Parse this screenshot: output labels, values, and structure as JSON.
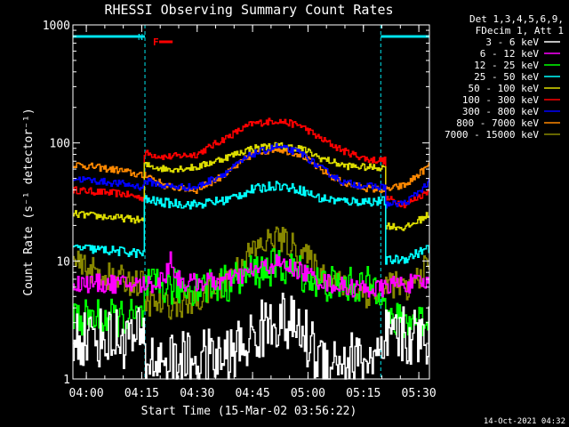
{
  "colors": {
    "background": "#000000",
    "axis": "#ffffff",
    "night": "#00e5ee",
    "flare": "#ff0000"
  },
  "chart_data": {
    "type": "line",
    "title": "RHESSI Observing Summary Count Rates",
    "xlabel": "Start Time (15-Mar-02 03:56:22)",
    "ylabel": "Count Rate (s⁻¹ detector⁻¹)",
    "yscale": "log",
    "ylim": [
      1,
      1000
    ],
    "xlim": [
      0,
      5790
    ],
    "x_unit": "seconds from 03:56:22",
    "yticks": [
      {
        "value": 1,
        "label": "1"
      },
      {
        "value": 10,
        "label": "10"
      },
      {
        "value": 100,
        "label": "100"
      },
      {
        "value": 1000,
        "label": "1000"
      }
    ],
    "xticks": [
      {
        "t": 218,
        "label": "04:00"
      },
      {
        "t": 1118,
        "label": "04:15"
      },
      {
        "t": 2018,
        "label": "04:30"
      },
      {
        "t": 2918,
        "label": "04:45"
      },
      {
        "t": 3818,
        "label": "05:00"
      },
      {
        "t": 4718,
        "label": "05:15"
      },
      {
        "t": 5618,
        "label": "05:30"
      }
    ],
    "legend": {
      "position": "right",
      "header": [
        "Det 1,3,4,5,6,9,",
        "FDecim 1, Att 1"
      ],
      "entries": [
        {
          "label": "3 - 6 keV",
          "color": "#ffffff"
        },
        {
          "label": "6 - 12 keV",
          "color": "#ff00ff"
        },
        {
          "label": "12 - 25 keV",
          "color": "#00ff00"
        },
        {
          "label": "25 - 50 keV",
          "color": "#00ffff"
        },
        {
          "label": "50 - 100 keV",
          "color": "#dddd00"
        },
        {
          "label": "100 - 300 keV",
          "color": "#ff0000"
        },
        {
          "label": "300 - 800 keV",
          "color": "#0000ff"
        },
        {
          "label": "800 - 7000 keV",
          "color": "#ff8800"
        },
        {
          "label": "7000 - 15000 keV",
          "color": "#888800"
        }
      ]
    },
    "annotations": {
      "night_label": "N",
      "flare_label": "F",
      "night_intervals": [
        [
          0,
          1170
        ],
        [
          5000,
          5790
        ]
      ],
      "flare_interval": [
        1400,
        1620
      ],
      "timestamp": "14-Oct-2021 04:32"
    },
    "series": [
      {
        "name": "100 - 300 keV",
        "color": "#ff0000",
        "noise": 0.015,
        "points": [
          [
            0,
            40
          ],
          [
            800,
            37
          ],
          [
            1150,
            34
          ],
          [
            1160,
            82
          ],
          [
            1500,
            76
          ],
          [
            2000,
            80
          ],
          [
            2500,
            112
          ],
          [
            2900,
            145
          ],
          [
            3300,
            155
          ],
          [
            3700,
            140
          ],
          [
            4000,
            110
          ],
          [
            4400,
            85
          ],
          [
            4800,
            72
          ],
          [
            5060,
            71
          ],
          [
            5080,
            34
          ],
          [
            5400,
            30
          ],
          [
            5790,
            40
          ]
        ]
      },
      {
        "name": "800 - 7000 keV",
        "color": "#ff8800",
        "noise": 0.015,
        "points": [
          [
            0,
            66
          ],
          [
            800,
            58
          ],
          [
            1150,
            52
          ],
          [
            1160,
            55
          ],
          [
            1500,
            43
          ],
          [
            2000,
            40
          ],
          [
            2500,
            55
          ],
          [
            2900,
            80
          ],
          [
            3300,
            90
          ],
          [
            3700,
            80
          ],
          [
            4000,
            60
          ],
          [
            4400,
            45
          ],
          [
            4800,
            41
          ],
          [
            5060,
            40
          ],
          [
            5080,
            40
          ],
          [
            5400,
            44
          ],
          [
            5790,
            65
          ]
        ]
      },
      {
        "name": "50 - 100 keV",
        "color": "#dddd00",
        "noise": 0.015,
        "points": [
          [
            0,
            25
          ],
          [
            800,
            23
          ],
          [
            1150,
            22
          ],
          [
            1160,
            65
          ],
          [
            1500,
            60
          ],
          [
            2000,
            62
          ],
          [
            2500,
            76
          ],
          [
            2900,
            90
          ],
          [
            3300,
            95
          ],
          [
            3700,
            90
          ],
          [
            4000,
            75
          ],
          [
            4400,
            64
          ],
          [
            4800,
            62
          ],
          [
            5060,
            62
          ],
          [
            5080,
            20
          ],
          [
            5400,
            19
          ],
          [
            5790,
            25
          ]
        ]
      },
      {
        "name": "300 - 800 keV",
        "color": "#0000ff",
        "noise": 0.015,
        "points": [
          [
            0,
            50
          ],
          [
            800,
            45
          ],
          [
            1150,
            42
          ],
          [
            1160,
            48
          ],
          [
            1500,
            43
          ],
          [
            2000,
            42
          ],
          [
            2500,
            57
          ],
          [
            2900,
            80
          ],
          [
            3300,
            93
          ],
          [
            3700,
            82
          ],
          [
            4000,
            62
          ],
          [
            4400,
            46
          ],
          [
            4800,
            43
          ],
          [
            5060,
            42
          ],
          [
            5080,
            30
          ],
          [
            5400,
            31
          ],
          [
            5790,
            47
          ]
        ]
      },
      {
        "name": "25 - 50 keV",
        "color": "#00ffff",
        "noise": 0.02,
        "points": [
          [
            0,
            13
          ],
          [
            800,
            12
          ],
          [
            1150,
            11.5
          ],
          [
            1160,
            33
          ],
          [
            1500,
            31
          ],
          [
            2000,
            30
          ],
          [
            2500,
            33
          ],
          [
            2900,
            40
          ],
          [
            3300,
            44
          ],
          [
            3700,
            40
          ],
          [
            4000,
            34
          ],
          [
            4400,
            32
          ],
          [
            4800,
            32
          ],
          [
            5060,
            32
          ],
          [
            5080,
            10
          ],
          [
            5400,
            10.5
          ],
          [
            5790,
            13
          ]
        ]
      },
      {
        "name": "7000 - 15000 keV",
        "color": "#888800",
        "noise": 0.06,
        "points": [
          [
            0,
            9.5
          ],
          [
            500,
            7.5
          ],
          [
            1150,
            6.3
          ],
          [
            1160,
            4.5
          ],
          [
            1500,
            4.2
          ],
          [
            2000,
            4.5
          ],
          [
            2500,
            7
          ],
          [
            2900,
            12
          ],
          [
            3300,
            16
          ],
          [
            3700,
            12
          ],
          [
            4000,
            8
          ],
          [
            4400,
            6
          ],
          [
            4800,
            5.2
          ],
          [
            5060,
            5.2
          ],
          [
            5080,
            7
          ],
          [
            5400,
            5.5
          ],
          [
            5790,
            9.5
          ]
        ]
      },
      {
        "name": "12 - 25 keV",
        "color": "#00ff00",
        "noise": 0.08,
        "points": [
          [
            0,
            3.3
          ],
          [
            1150,
            3.3
          ],
          [
            1160,
            6
          ],
          [
            1500,
            6
          ],
          [
            2000,
            6
          ],
          [
            2500,
            6.5
          ],
          [
            2900,
            8
          ],
          [
            3300,
            9
          ],
          [
            3700,
            8
          ],
          [
            4000,
            6.5
          ],
          [
            4400,
            6.2
          ],
          [
            4800,
            6.2
          ],
          [
            5060,
            6
          ],
          [
            5080,
            3
          ],
          [
            5790,
            3.2
          ]
        ]
      },
      {
        "name": "6 - 12 keV",
        "color": "#ff00ff",
        "noise": 0.04,
        "points": [
          [
            0,
            6.5
          ],
          [
            1150,
            6.3
          ],
          [
            1350,
            6.5
          ],
          [
            1500,
            7.5
          ],
          [
            1580,
            11
          ],
          [
            1660,
            7.5
          ],
          [
            1800,
            6.5
          ],
          [
            2500,
            6.8
          ],
          [
            2900,
            8.2
          ],
          [
            3300,
            9.5
          ],
          [
            3700,
            8.2
          ],
          [
            4000,
            6.8
          ],
          [
            4400,
            6
          ],
          [
            4800,
            5.8
          ],
          [
            5060,
            5.8
          ],
          [
            5080,
            6.3
          ],
          [
            5790,
            6.5
          ]
        ]
      },
      {
        "name": "3 - 6 keV",
        "color": "#ffffff",
        "noise": 0.13,
        "points": [
          [
            0,
            2.3
          ],
          [
            1150,
            2.2
          ],
          [
            1160,
            1.5
          ],
          [
            1700,
            1.4
          ],
          [
            2500,
            1.5
          ],
          [
            2900,
            2.2
          ],
          [
            3300,
            3.3
          ],
          [
            3700,
            2.5
          ],
          [
            4000,
            1.5
          ],
          [
            5060,
            1.4
          ],
          [
            5080,
            2.2
          ],
          [
            5790,
            2.3
          ]
        ]
      }
    ]
  }
}
